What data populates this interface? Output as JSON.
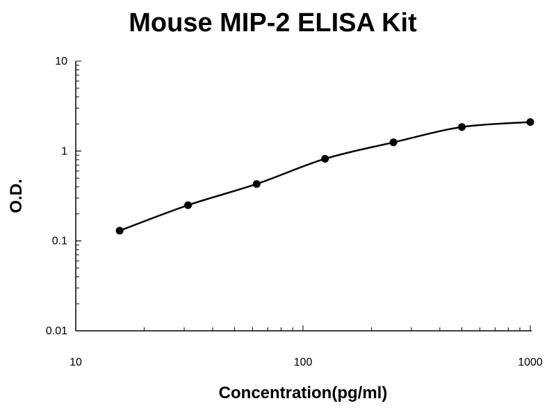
{
  "chart_data": {
    "type": "scatter",
    "title": "Mouse MIP-2 ELISA Kit",
    "xlabel": "Concentration(pg/ml)",
    "ylabel": "O.D.",
    "xscale": "log",
    "yscale": "log",
    "xlim": [
      10,
      1000
    ],
    "ylim": [
      0.01,
      10
    ],
    "xticks": [
      "10",
      "100",
      "1000"
    ],
    "yticks": [
      "10",
      "1",
      "0.1",
      "0.01"
    ],
    "grid": false,
    "legend": "none",
    "series": [
      {
        "points": [
          {
            "x": 15.6,
            "y": 0.13
          },
          {
            "x": 31.2,
            "y": 0.25
          },
          {
            "x": 62.5,
            "y": 0.43
          },
          {
            "x": 125,
            "y": 0.82
          },
          {
            "x": 250,
            "y": 1.25
          },
          {
            "x": 500,
            "y": 1.85
          },
          {
            "x": 1000,
            "y": 2.1
          }
        ],
        "fit_curve": true,
        "color": "#000000"
      }
    ]
  }
}
